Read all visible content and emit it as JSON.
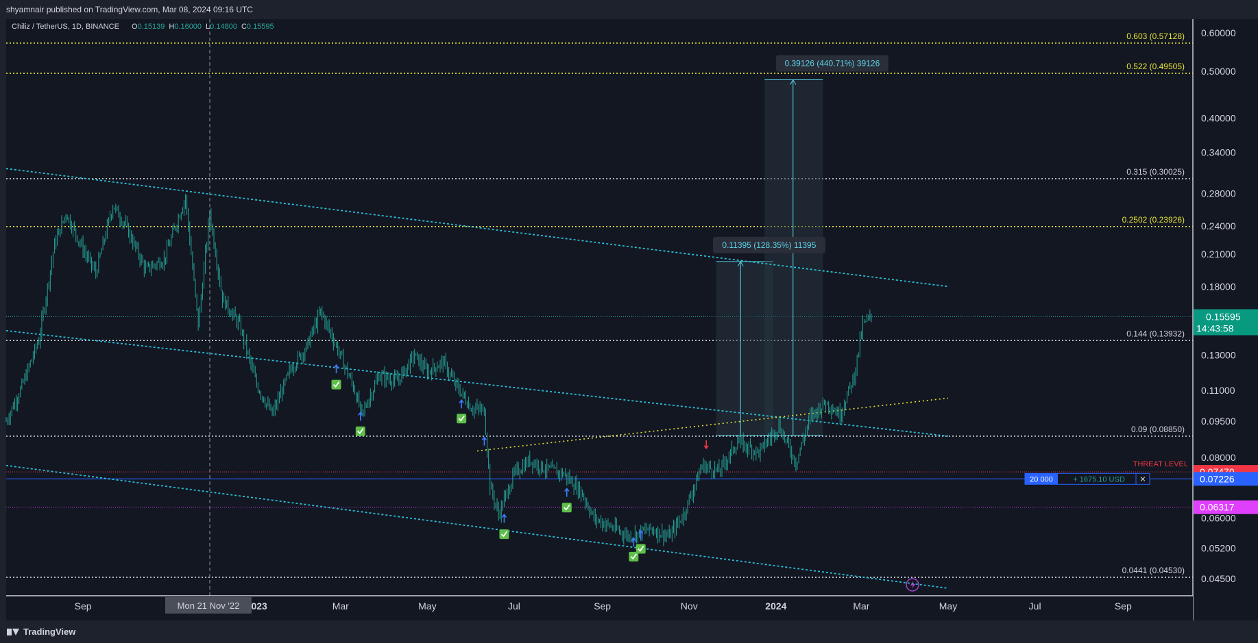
{
  "publisher": "shyamnair published on TradingView.com, Mar 08, 2024 09:16 UTC",
  "footer_brand": "TradingView",
  "symbol": {
    "title": "Chiliz / TetherUS, 1D, BINANCE",
    "o_label": "O",
    "o_value": "0.15139",
    "h_label": "H",
    "h_value": "0.16000",
    "l_label": "L",
    "l_value": "0.14800",
    "c_label": "C",
    "c_value": "0.15595"
  },
  "colors": {
    "background": "#131722",
    "panel": "#1e222d",
    "up": "#26a69a",
    "channel": "#2bbfd8",
    "yellow_line": "#e8e337",
    "white_dotted": "#d1d4dc",
    "threat": "#f23645",
    "entry": "#2962ff",
    "magenta": "#e040fb",
    "price_label": "#089981"
  },
  "crosshair_date": "Mon 21 Nov '22",
  "chart_data": {
    "type": "candlestick",
    "scale": "log",
    "ylim": [
      0.0415,
      0.64
    ],
    "xlim": [
      "2022-07-09",
      "2024-10-20"
    ],
    "x_ticks": [
      {
        "label": "Sep",
        "date": "2022-09-01"
      },
      {
        "label": "2023",
        "date": "2023-01-01"
      },
      {
        "label": "Mar",
        "date": "2023-03-01"
      },
      {
        "label": "May",
        "date": "2023-05-01"
      },
      {
        "label": "Jul",
        "date": "2023-07-01"
      },
      {
        "label": "Sep",
        "date": "2023-09-01"
      },
      {
        "label": "Nov",
        "date": "2023-11-01"
      },
      {
        "label": "2024",
        "date": "2024-01-01"
      },
      {
        "label": "Mar",
        "date": "2024-03-01"
      },
      {
        "label": "May",
        "date": "2024-05-01"
      },
      {
        "label": "Jul",
        "date": "2024-07-01"
      },
      {
        "label": "Sep",
        "date": "2024-09-01"
      }
    ],
    "y_ticks": [
      "0.60000",
      "0.50000",
      "0.40000",
      "0.34000",
      "0.28000",
      "0.24000",
      "0.21000",
      "0.18000",
      "0.13000",
      "0.11000",
      "0.09500",
      "0.08000",
      "0.06000",
      "0.05200",
      "0.04500"
    ],
    "price_path": [
      [
        "2022-07-09",
        0.095
      ],
      [
        "2022-07-20",
        0.112
      ],
      [
        "2022-08-01",
        0.14
      ],
      [
        "2022-08-12",
        0.22
      ],
      [
        "2022-08-20",
        0.255
      ],
      [
        "2022-09-01",
        0.215
      ],
      [
        "2022-09-10",
        0.192
      ],
      [
        "2022-09-22",
        0.265
      ],
      [
        "2022-10-01",
        0.24
      ],
      [
        "2022-10-15",
        0.195
      ],
      [
        "2022-10-28",
        0.205
      ],
      [
        "2022-11-05",
        0.24
      ],
      [
        "2022-11-12",
        0.275
      ],
      [
        "2022-11-21",
        0.15
      ],
      [
        "2022-11-29",
        0.255
      ],
      [
        "2022-12-08",
        0.17
      ],
      [
        "2022-12-20",
        0.15
      ],
      [
        "2023-01-01",
        0.113
      ],
      [
        "2023-01-12",
        0.098
      ],
      [
        "2023-01-25",
        0.122
      ],
      [
        "2023-02-05",
        0.135
      ],
      [
        "2023-02-15",
        0.16
      ],
      [
        "2023-02-25",
        0.138
      ],
      [
        "2023-03-10",
        0.112
      ],
      [
        "2023-03-16",
        0.098
      ],
      [
        "2023-03-28",
        0.118
      ],
      [
        "2023-04-10",
        0.115
      ],
      [
        "2023-04-22",
        0.13
      ],
      [
        "2023-05-01",
        0.12
      ],
      [
        "2023-05-12",
        0.126
      ],
      [
        "2023-05-20",
        0.114
      ],
      [
        "2023-06-01",
        0.101
      ],
      [
        "2023-06-10",
        0.1
      ],
      [
        "2023-06-14",
        0.07
      ],
      [
        "2023-06-20",
        0.061
      ],
      [
        "2023-07-01",
        0.074
      ],
      [
        "2023-07-12",
        0.079
      ],
      [
        "2023-07-22",
        0.076
      ],
      [
        "2023-08-05",
        0.074
      ],
      [
        "2023-08-17",
        0.068
      ],
      [
        "2023-08-26",
        0.06
      ],
      [
        "2023-09-10",
        0.057
      ],
      [
        "2023-09-20",
        0.055
      ],
      [
        "2023-10-05",
        0.057
      ],
      [
        "2023-10-18",
        0.055
      ],
      [
        "2023-10-28",
        0.061
      ],
      [
        "2023-11-10",
        0.077
      ],
      [
        "2023-11-22",
        0.075
      ],
      [
        "2023-12-05",
        0.086
      ],
      [
        "2023-12-20",
        0.082
      ],
      [
        "2024-01-03",
        0.093
      ],
      [
        "2024-01-15",
        0.078
      ],
      [
        "2024-01-25",
        0.097
      ],
      [
        "2024-02-05",
        0.104
      ],
      [
        "2024-02-15",
        0.098
      ],
      [
        "2024-02-25",
        0.118
      ],
      [
        "2024-03-02",
        0.15
      ],
      [
        "2024-03-08",
        0.156
      ]
    ],
    "horizontal_levels": [
      {
        "label": "0.603 (0.57128)",
        "price": 0.57128,
        "style": "yellow"
      },
      {
        "label": "0.522 (0.49505)",
        "price": 0.49505,
        "style": "yellow"
      },
      {
        "label": "0.315 (0.30025)",
        "price": 0.30025,
        "style": "white"
      },
      {
        "label": "0.2502 (0.23926)",
        "price": 0.23926,
        "style": "yellow"
      },
      {
        "label": "0.144 (0.13932)",
        "price": 0.13932,
        "style": "white"
      },
      {
        "label": "0.09 (0.08850)",
        "price": 0.0885,
        "style": "white"
      },
      {
        "label": "0.0441 (0.04530)",
        "price": 0.0453,
        "style": "white"
      }
    ],
    "threat_level": {
      "label": "THREAT LEVEL",
      "price": 0.0747,
      "value": "0.07470"
    },
    "entry_level": {
      "price": 0.07226,
      "value": "0.07226",
      "qty": "20 000",
      "pnl": "+ 1675.10 USD",
      "close": "✕"
    },
    "magenta_level": {
      "price": 0.06317,
      "value": "0.06317"
    },
    "current_price": {
      "price": 0.15595,
      "value": "0.15595",
      "countdown": "14:43:58"
    },
    "trendlines": [
      {
        "name": "channel-upper",
        "style": "cyan",
        "from": [
          "2022-07-09",
          0.315
        ],
        "to": [
          "2024-05-01",
          0.18
        ]
      },
      {
        "name": "channel-middle",
        "style": "cyan",
        "from": [
          "2022-07-09",
          0.146
        ],
        "to": [
          "2024-05-01",
          0.0885
        ]
      },
      {
        "name": "channel-lower",
        "style": "cyan",
        "from": [
          "2022-07-09",
          0.077
        ],
        "to": [
          "2024-05-01",
          0.043
        ]
      },
      {
        "name": "rising-support",
        "style": "yellow",
        "from": [
          "2023-06-05",
          0.0825
        ],
        "to": [
          "2024-05-01",
          0.106
        ]
      }
    ],
    "measurements": [
      {
        "label": "0.11395 (128.35%) 11395",
        "from_date": "2023-11-20",
        "to_date": "2023-12-30",
        "base": 0.0888,
        "top": 0.2027
      },
      {
        "label": "0.39126 (440.71%) 39126",
        "from_date": "2023-12-24",
        "to_date": "2024-02-03",
        "base": 0.0888,
        "top": 0.48
      }
    ],
    "markers": [
      {
        "kind": "buy",
        "date": "2023-02-26",
        "price": 0.121
      },
      {
        "kind": "buy",
        "date": "2023-03-15",
        "price": 0.097
      },
      {
        "kind": "buy",
        "date": "2023-05-25",
        "price": 0.103
      },
      {
        "kind": "buy",
        "date": "2023-06-24",
        "price": 0.0595
      },
      {
        "kind": "buy",
        "date": "2023-08-07",
        "price": 0.0675
      },
      {
        "kind": "buy",
        "date": "2023-09-23",
        "price": 0.0535
      },
      {
        "kind": "buy",
        "date": "2023-09-28",
        "price": 0.0555
      },
      {
        "kind": "sell",
        "date": "2023-11-13",
        "price": 0.0835
      }
    ],
    "signal_arrows": [
      {
        "date": "2023-02-26",
        "price": 0.124
      },
      {
        "date": "2023-03-15",
        "price": 0.099
      },
      {
        "date": "2023-05-25",
        "price": 0.105
      },
      {
        "date": "2023-06-10",
        "price": 0.088
      },
      {
        "date": "2023-06-24",
        "price": 0.061
      },
      {
        "date": "2023-08-07",
        "price": 0.069
      },
      {
        "date": "2023-09-23",
        "price": 0.0545
      },
      {
        "date": "2023-09-28",
        "price": 0.0565
      }
    ]
  }
}
